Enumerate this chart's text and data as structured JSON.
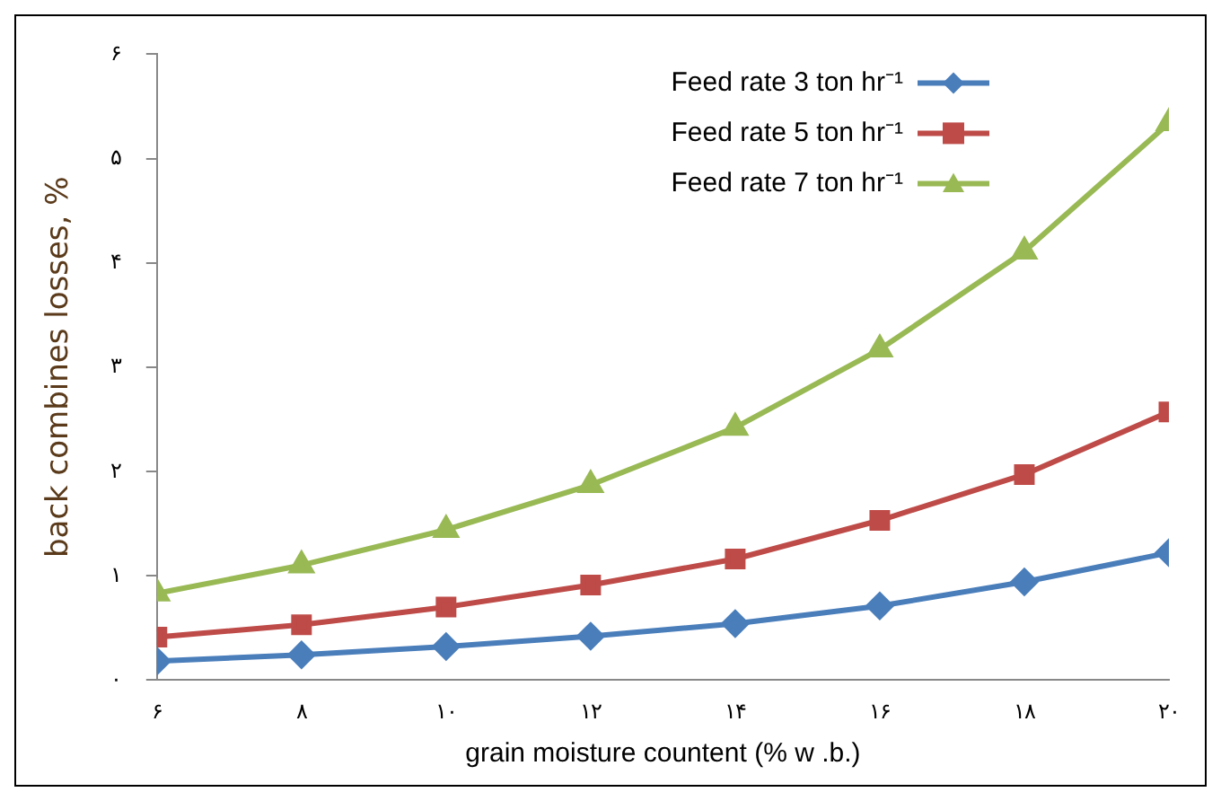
{
  "chart_data": {
    "type": "line",
    "xlabel": "grain moisture countent (% w .b.)",
    "ylabel": "back combines losses, %",
    "xlim": [
      6,
      20
    ],
    "xticks": [
      {
        "value": 6,
        "label": "۶"
      },
      {
        "value": 8,
        "label": "۸"
      },
      {
        "value": 10,
        "label": "۱۰"
      },
      {
        "value": 12,
        "label": "۱۲"
      },
      {
        "value": 14,
        "label": "۱۴"
      },
      {
        "value": 16,
        "label": "۱۶"
      },
      {
        "value": 18,
        "label": "۱۸"
      },
      {
        "value": 20,
        "label": "۲۰"
      }
    ],
    "ylim": [
      0,
      6
    ],
    "yticks": [
      {
        "value": 0,
        "label": "۰"
      },
      {
        "value": 1,
        "label": "۱"
      },
      {
        "value": 2,
        "label": "۲"
      },
      {
        "value": 3,
        "label": "۳"
      },
      {
        "value": 4,
        "label": "۴"
      },
      {
        "value": 5,
        "label": "۵"
      },
      {
        "value": 6,
        "label": "۶"
      }
    ],
    "x": [
      6,
      8,
      10,
      12,
      14,
      16,
      18,
      20
    ],
    "series": [
      {
        "name": "Feed rate 3 ton hr⁻¹",
        "color": "#4a7ebb",
        "marker": "diamond",
        "values": [
          0.18,
          0.24,
          0.32,
          0.42,
          0.54,
          0.71,
          0.94,
          1.22
        ]
      },
      {
        "name": "Feed rate 5 ton hr⁻¹",
        "color": "#be4b48",
        "marker": "square",
        "values": [
          0.41,
          0.53,
          0.7,
          0.91,
          1.16,
          1.53,
          1.97,
          2.57
        ]
      },
      {
        "name": "Feed rate 7 ton hr⁻¹",
        "color": "#98b954",
        "marker": "triangle",
        "values": [
          0.83,
          1.1,
          1.44,
          1.87,
          2.42,
          3.17,
          4.11,
          5.34
        ]
      }
    ],
    "grid": false,
    "legend": "top right",
    "line_style": "solid"
  }
}
